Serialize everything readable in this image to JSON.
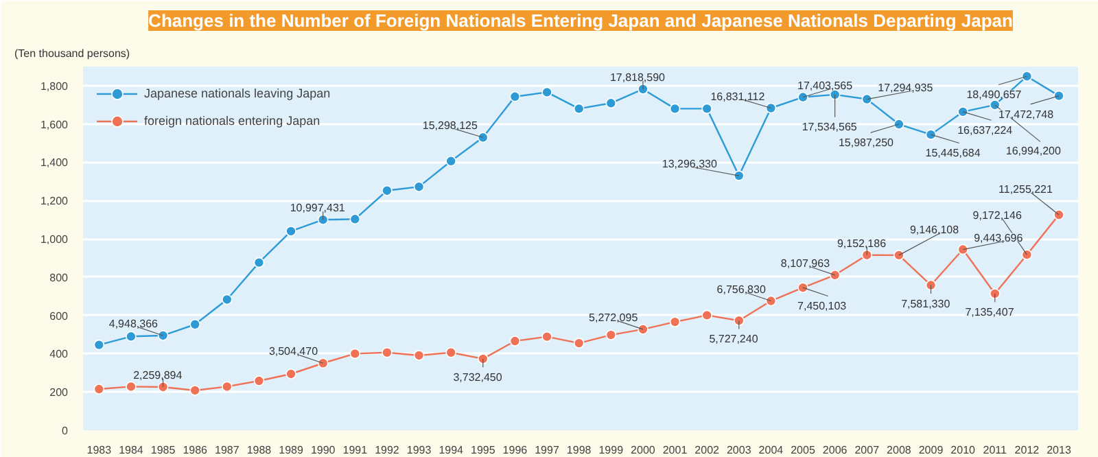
{
  "chart_data": {
    "type": "line",
    "title": "Changes in the Number of Foreign Nationals Entering Japan and Japanese Nationals Departing Japan",
    "ylabel": "(Ten thousand persons)",
    "x": [
      1983,
      1984,
      1985,
      1986,
      1987,
      1988,
      1989,
      1990,
      1991,
      1992,
      1993,
      1994,
      1995,
      1996,
      1997,
      1998,
      1999,
      2000,
      2001,
      2002,
      2003,
      2004,
      2005,
      2006,
      2007,
      2008,
      2009,
      2010,
      2011,
      2012,
      2013
    ],
    "series": [
      {
        "name": "Japanese nationals leaving Japan",
        "color": "#2e9bd6",
        "values": [
          446,
          490,
          494.8366,
          553,
          683,
          876,
          1040,
          1099.7431,
          1103,
          1252,
          1272,
          1406,
          1529.8125,
          1743,
          1766,
          1680,
          1709,
          1781.859,
          1680,
          1680,
          1329.633,
          1683.1112,
          1740.3565,
          1753.4565,
          1729.4935,
          1598.725,
          1544.5684,
          1663.7224,
          1699.42,
          1849.0657,
          1747.2748
        ]
      },
      {
        "name": "foreign nationals entering Japan",
        "color": "#ef7257",
        "values": [
          215,
          228,
          225.9894,
          208,
          228,
          258,
          294,
          350.447,
          400,
          406,
          391,
          406,
          373.245,
          466,
          489,
          455,
          498,
          527.2095,
          566,
          601,
          572.724,
          675.683,
          745.0103,
          810.7963,
          915.2186,
          914.6108,
          758.133,
          944.3696,
          713.5407,
          917.2146,
          1125.5221
        ]
      }
    ],
    "xlim": [
      1982.5,
      2013.6
    ],
    "xticks": [
      1983,
      1984,
      1985,
      1986,
      1987,
      1988,
      1989,
      1990,
      1991,
      1992,
      1993,
      1994,
      1995,
      1996,
      1997,
      1998,
      1999,
      2000,
      2001,
      2002,
      2003,
      2004,
      2005,
      2006,
      2007,
      2008,
      2009,
      2010,
      2011,
      2012,
      2013
    ],
    "ylim": [
      0,
      1900
    ],
    "yticks": [
      0,
      200,
      400,
      600,
      800,
      {
        "value": 1000,
        "label": "1,000"
      },
      {
        "value": 1200,
        "label": "1,200"
      },
      {
        "value": 1400,
        "label": "1,400"
      },
      {
        "value": 1600,
        "label": "1,600"
      },
      {
        "value": 1800,
        "label": "1,800"
      }
    ],
    "grid": "y",
    "legend": "top left",
    "marker": "circle",
    "line_style": "solid",
    "annotations": [
      {
        "text": "4,948,366",
        "x": 1985,
        "y": 494.8366
      },
      {
        "text": "10,997,431",
        "x": 1990,
        "y": 1099.7431
      },
      {
        "text": "15,298,125",
        "x": 1995,
        "y": 1529.8125
      },
      {
        "text": "17,818,590",
        "x": 2000,
        "y": 1781.859
      },
      {
        "text": "13,296,330",
        "x": 2003,
        "y": 1329.633
      },
      {
        "text": "16,831,112",
        "x": 2004,
        "y": 1683.1112
      },
      {
        "text": "17,403,565",
        "x": 2005,
        "y": 1740.3565
      },
      {
        "text": "17,534,565",
        "x": 2006,
        "y": 1753.4565
      },
      {
        "text": "17,294,935",
        "x": 2007,
        "y": 1729.4935
      },
      {
        "text": "15,987,250",
        "x": 2008,
        "y": 1598.725
      },
      {
        "text": "15,445,684",
        "x": 2009,
        "y": 1544.5684
      },
      {
        "text": "16,637,224",
        "x": 2010,
        "y": 1663.7224
      },
      {
        "text": "16,994,200",
        "x": 2011,
        "y": 1699.42
      },
      {
        "text": "18,490,657",
        "x": 2012,
        "y": 1849.0657
      },
      {
        "text": "17,472,748",
        "x": 2013,
        "y": 1747.2748
      },
      {
        "text": "2,259,894",
        "x": 1985,
        "y": 225.9894
      },
      {
        "text": "3,504,470",
        "x": 1990,
        "y": 350.447
      },
      {
        "text": "3,732,450",
        "x": 1995,
        "y": 373.245
      },
      {
        "text": "5,272,095",
        "x": 2000,
        "y": 527.2095
      },
      {
        "text": "5,727,240",
        "x": 2003,
        "y": 572.724
      },
      {
        "text": "6,756,830",
        "x": 2004,
        "y": 675.683
      },
      {
        "text": "7,450,103",
        "x": 2005,
        "y": 745.0103
      },
      {
        "text": "8,107,963",
        "x": 2006,
        "y": 810.7963
      },
      {
        "text": "9,152,186",
        "x": 2007,
        "y": 915.2186
      },
      {
        "text": "9,146,108",
        "x": 2008,
        "y": 914.6108
      },
      {
        "text": "7,581,330",
        "x": 2009,
        "y": 758.133
      },
      {
        "text": "9,443,696",
        "x": 2010,
        "y": 944.3696
      },
      {
        "text": "7,135,407",
        "x": 2011,
        "y": 713.5407
      },
      {
        "text": "9,172,146",
        "x": 2012,
        "y": 917.2146
      },
      {
        "text": "11,255,221",
        "x": 2013,
        "y": 1125.5221
      }
    ]
  }
}
